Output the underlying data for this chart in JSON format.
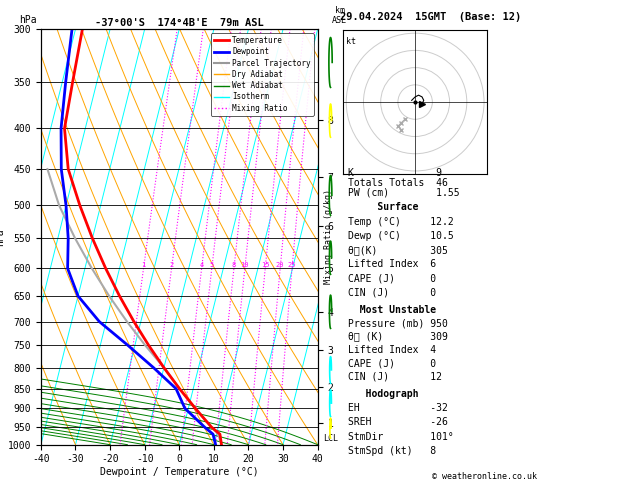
{
  "title_left": "-37°00'S  174°4B'E  79m ASL",
  "title_right": "29.04.2024  15GMT  (Base: 12)",
  "xlabel": "Dewpoint / Temperature (°C)",
  "ylabel_left": "hPa",
  "ylabel_mixing": "Mixing Ratio (g/kg)",
  "pressure_levels": [
    300,
    350,
    400,
    450,
    500,
    550,
    600,
    650,
    700,
    750,
    800,
    850,
    900,
    950,
    1000
  ],
  "temp_xlim": [
    -40,
    40
  ],
  "km_ticks": {
    "1": 940,
    "2": 845,
    "3": 760,
    "4": 680,
    "5": 600,
    "6": 530,
    "7": 460,
    "8": 390
  },
  "legend_items": [
    {
      "label": "Temperature",
      "color": "red",
      "lw": 2,
      "ls": "-"
    },
    {
      "label": "Dewpoint",
      "color": "blue",
      "lw": 2,
      "ls": "-"
    },
    {
      "label": "Parcel Trajectory",
      "color": "#999999",
      "lw": 1.5,
      "ls": "-"
    },
    {
      "label": "Dry Adiabat",
      "color": "orange",
      "lw": 1,
      "ls": "-"
    },
    {
      "label": "Wet Adiabat",
      "color": "green",
      "lw": 1,
      "ls": "-"
    },
    {
      "label": "Isotherm",
      "color": "cyan",
      "lw": 1,
      "ls": "-"
    },
    {
      "label": "Mixing Ratio",
      "color": "magenta",
      "lw": 1,
      "ls": ":"
    }
  ],
  "temp_profile_T": [
    12.2,
    11.0,
    8.0,
    2.0,
    -4.0,
    -10.0,
    -16.0,
    -22.0,
    -28.0,
    -34.0,
    -40.0,
    -46.0,
    -52.0,
    -56.0,
    -57.0,
    -58.0
  ],
  "temp_profile_p": [
    1000,
    970,
    950,
    900,
    850,
    800,
    750,
    700,
    650,
    600,
    550,
    500,
    450,
    400,
    350,
    300
  ],
  "dew_profile_T": [
    10.5,
    9.0,
    6.0,
    -1.0,
    -5.0,
    -13.0,
    -22.0,
    -32.0,
    -40.0,
    -45.0,
    -47.0,
    -50.0,
    -54.0,
    -57.0,
    -59.0,
    -61.0
  ],
  "dew_profile_p": [
    1000,
    970,
    950,
    900,
    850,
    800,
    750,
    700,
    650,
    600,
    550,
    500,
    450,
    400,
    350,
    300
  ],
  "parcel_T": [
    12.2,
    10.5,
    8.0,
    2.0,
    -4.0,
    -10.0,
    -17.0,
    -24.0,
    -31.0,
    -38.0,
    -45.0,
    -52.0,
    -58.0
  ],
  "parcel_p": [
    1000,
    970,
    950,
    900,
    850,
    800,
    750,
    700,
    650,
    600,
    550,
    500,
    450
  ],
  "skew_factor": 30,
  "mixing_ratio_vals": [
    1,
    2,
    4,
    5,
    8,
    10,
    15,
    20,
    25
  ],
  "stats": {
    "K": 9,
    "Totals_Totals": 46,
    "PW_cm": 1.55,
    "Surface_Temp": 12.2,
    "Surface_Dewp": 10.5,
    "Surface_theta_e": 305,
    "Surface_LI": 6,
    "Surface_CAPE": 0,
    "Surface_CIN": 0,
    "MU_Pressure": 950,
    "MU_theta_e": 309,
    "MU_LI": 4,
    "MU_CAPE": 0,
    "MU_CIN": 12,
    "EH": -32,
    "SREH": -26,
    "StmDir": 101,
    "StmSpd": 8
  },
  "copyright": "© weatheronline.co.uk"
}
